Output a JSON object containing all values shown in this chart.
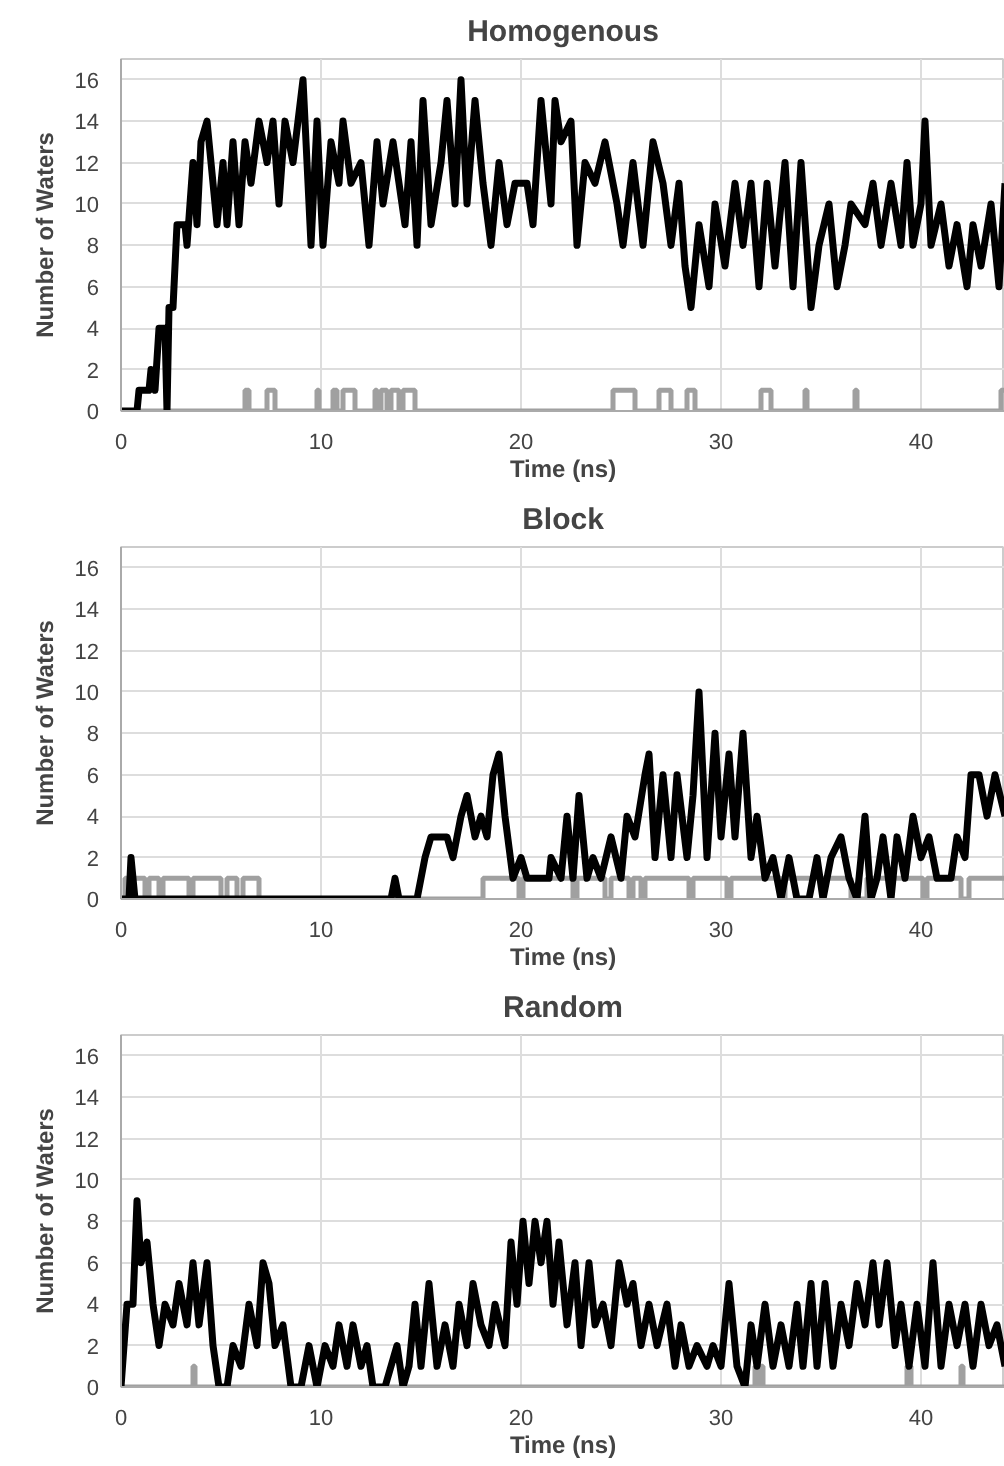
{
  "chart_data": [
    {
      "type": "line",
      "title": "Homogenous",
      "xlabel": "Time (ns)",
      "ylabel": "Number of Waters",
      "xlim": [
        0,
        44.2
      ],
      "ylim": [
        0,
        17
      ],
      "xticks": [
        0,
        10,
        20,
        30,
        40
      ],
      "yticks": [
        0,
        2,
        4,
        6,
        8,
        10,
        12,
        14,
        16
      ],
      "grid": true,
      "line_style": "solid",
      "series": [
        {
          "type": "step",
          "color": "#a0a0a0",
          "x": [
            0,
            6.2,
            6.4,
            7.3,
            7.7,
            9.8,
            9.9,
            10.6,
            10.8,
            11.1,
            11.7,
            12.7,
            12.8,
            13.0,
            13.3,
            13.5,
            13.9,
            14.1,
            14.7,
            24.6,
            25.7,
            26.9,
            27.5,
            28.3,
            28.7,
            32.0,
            32.5,
            34.2,
            34.3,
            36.7,
            36.8,
            44.0,
            44.2
          ],
          "values": [
            0,
            1,
            0,
            1,
            0,
            1,
            0,
            1,
            0,
            1,
            0,
            1,
            0,
            1,
            0,
            1,
            0,
            1,
            0,
            1,
            0,
            1,
            0,
            1,
            0,
            1,
            0,
            1,
            0,
            1,
            0,
            1,
            1
          ]
        },
        {
          "color": "#000000",
          "x": [
            0,
            0.8,
            0.9,
            1.4,
            1.5,
            1.7,
            1.9,
            2.2,
            2.3,
            2.4,
            2.6,
            2.8,
            3.2,
            3.3,
            3.6,
            3.8,
            4.0,
            4.3,
            4.5,
            4.8,
            5.1,
            5.3,
            5.6,
            5.9,
            6.2,
            6.5,
            6.9,
            7.3,
            7.6,
            7.9,
            8.2,
            8.6,
            9.1,
            9.5,
            9.8,
            10.1,
            10.5,
            10.9,
            11.1,
            11.5,
            12.0,
            12.4,
            12.8,
            13.1,
            13.6,
            14.2,
            14.5,
            14.8,
            15.1,
            15.5,
            16.0,
            16.3,
            16.7,
            17.0,
            17.3,
            17.7,
            18.1,
            18.5,
            18.9,
            19.3,
            19.7,
            20.3,
            20.6,
            21.0,
            21.5,
            21.7,
            22.0,
            22.5,
            22.8,
            23.2,
            23.7,
            24.2,
            24.8,
            25.1,
            25.6,
            26.1,
            26.6,
            27.1,
            27.5,
            27.9,
            28.2,
            28.5,
            28.9,
            29.4,
            29.7,
            30.2,
            30.7,
            31.1,
            31.5,
            31.9,
            32.3,
            32.7,
            33.2,
            33.6,
            34.0,
            34.5,
            34.9,
            35.4,
            35.8,
            36.2,
            36.5,
            37.2,
            37.6,
            38.0,
            38.5,
            39.0,
            39.3,
            39.6,
            40.0,
            40.2,
            40.5,
            41.0,
            41.4,
            41.8,
            42.3,
            42.6,
            43.0,
            43.5,
            43.9,
            44.2
          ],
          "values": [
            0,
            0,
            1,
            1,
            2,
            1,
            4,
            4,
            0,
            5,
            5,
            9,
            9,
            8,
            12,
            9,
            13,
            14,
            12,
            9,
            12,
            9,
            13,
            9,
            13,
            11,
            14,
            12,
            14,
            10,
            14,
            12,
            16,
            8,
            14,
            8,
            13,
            11,
            14,
            11,
            12,
            8,
            13,
            10,
            13,
            9,
            13,
            8,
            15,
            9,
            12,
            15,
            10,
            16,
            10,
            15,
            11,
            8,
            12,
            9,
            11,
            11,
            9,
            15,
            10,
            15,
            13,
            14,
            8,
            12,
            11,
            13,
            10,
            8,
            12,
            8,
            13,
            11,
            8,
            11,
            7,
            5,
            9,
            6,
            10,
            7,
            11,
            8,
            11,
            6,
            11,
            7,
            12,
            6,
            12,
            5,
            8,
            10,
            6,
            8,
            10,
            9,
            11,
            8,
            11,
            8,
            12,
            8,
            10,
            14,
            8,
            10,
            7,
            9,
            6,
            9,
            7,
            10,
            6,
            11
          ]
        }
      ]
    },
    {
      "type": "line",
      "title": "Block",
      "xlabel": "Time (ns)",
      "ylabel": "Number of Waters",
      "xlim": [
        0,
        44.2
      ],
      "ylim": [
        0,
        17
      ],
      "xticks": [
        0,
        10,
        20,
        30,
        40
      ],
      "yticks": [
        0,
        2,
        4,
        6,
        8,
        10,
        12,
        14,
        16
      ],
      "grid": true,
      "line_style": "solid",
      "series": [
        {
          "type": "step",
          "color": "#a0a0a0",
          "x": [
            0,
            0.2,
            1.2,
            1.4,
            1.9,
            2.1,
            3.4,
            3.6,
            5.0,
            5.3,
            5.8,
            6.1,
            6.9,
            18.1,
            19.9,
            20.1,
            22.6,
            22.8,
            24.2,
            24.5,
            25.4,
            25.6,
            26.0,
            26.2,
            28.4,
            28.6,
            30.3,
            30.5,
            33.0,
            33.2,
            36.5,
            37.3,
            40.1,
            40.3,
            42.0,
            42.4,
            44.2
          ],
          "values": [
            0,
            1,
            0,
            1,
            0,
            1,
            0,
            1,
            0,
            1,
            0,
            1,
            0,
            1,
            0,
            1,
            0,
            1,
            0,
            1,
            0,
            1,
            0,
            1,
            0,
            1,
            0,
            1,
            0,
            1,
            0,
            1,
            0,
            1,
            0,
            1,
            1
          ]
        },
        {
          "color": "#000000",
          "x": [
            0,
            0.4,
            0.5,
            0.7,
            1.5,
            13.5,
            13.7,
            13.9,
            14.8,
            15.2,
            15.5,
            16.3,
            16.6,
            17.0,
            17.3,
            17.7,
            18.0,
            18.3,
            18.6,
            18.9,
            19.2,
            19.6,
            20.0,
            20.3,
            21.4,
            21.5,
            22.0,
            22.3,
            22.6,
            22.9,
            23.3,
            23.6,
            24.0,
            24.5,
            25.0,
            25.3,
            25.7,
            26.2,
            26.4,
            26.7,
            27.1,
            27.5,
            27.8,
            28.3,
            28.6,
            28.9,
            29.3,
            29.7,
            30.0,
            30.4,
            30.7,
            31.1,
            31.5,
            31.8,
            32.2,
            32.6,
            33.0,
            33.4,
            33.8,
            34.4,
            34.8,
            35.1,
            35.5,
            36.0,
            36.4,
            36.8,
            37.2,
            37.5,
            37.8,
            38.1,
            38.5,
            38.8,
            39.2,
            39.6,
            40.0,
            40.4,
            40.8,
            41.5,
            41.8,
            42.2,
            42.5,
            42.9,
            43.3,
            43.7,
            44.2
          ],
          "values": [
            0,
            0,
            2,
            0,
            0,
            0,
            1,
            0,
            0,
            2,
            3,
            3,
            2,
            4,
            5,
            3,
            4,
            3,
            6,
            7,
            4,
            1,
            2,
            1,
            1,
            2,
            1,
            4,
            1,
            5,
            1,
            2,
            1,
            3,
            1,
            4,
            3,
            6,
            7,
            2,
            6,
            2,
            6,
            2,
            5,
            10,
            2,
            8,
            3,
            7,
            3,
            8,
            2,
            4,
            1,
            2,
            0,
            2,
            0,
            0,
            2,
            0,
            2,
            3,
            1,
            0,
            4,
            0,
            1,
            3,
            0,
            3,
            1,
            4,
            2,
            3,
            1,
            1,
            3,
            2,
            6,
            6,
            4,
            6,
            4
          ]
        }
      ]
    },
    {
      "type": "line",
      "title": "Random",
      "xlabel": "Time (ns)",
      "ylabel": "Number of Waters",
      "xlim": [
        0,
        44.2
      ],
      "ylim": [
        0,
        17
      ],
      "xticks": [
        0,
        10,
        20,
        30,
        40
      ],
      "yticks": [
        0,
        2,
        4,
        6,
        8,
        10,
        12,
        14,
        16
      ],
      "grid": true,
      "line_style": "solid",
      "series": [
        {
          "type": "step",
          "color": "#a0a0a0",
          "x": [
            0,
            3.6,
            3.7,
            31.7,
            31.8,
            32.0,
            32.1,
            39.3,
            39.5,
            42.0,
            42.1,
            44.2
          ],
          "values": [
            0,
            1,
            0,
            1,
            0,
            1,
            0,
            1,
            0,
            1,
            0,
            0
          ]
        },
        {
          "color": "#000000",
          "x": [
            0,
            0.3,
            0.6,
            0.8,
            1.0,
            1.3,
            1.6,
            1.9,
            2.2,
            2.6,
            2.9,
            3.3,
            3.6,
            3.9,
            4.3,
            4.6,
            4.9,
            5.3,
            5.6,
            6.0,
            6.4,
            6.8,
            7.1,
            7.4,
            7.7,
            8.1,
            8.5,
            9.0,
            9.4,
            9.8,
            10.2,
            10.6,
            10.9,
            11.3,
            11.6,
            12.0,
            12.3,
            12.6,
            13.2,
            13.5,
            13.8,
            14.1,
            14.4,
            14.7,
            15.0,
            15.4,
            15.8,
            16.2,
            16.6,
            16.9,
            17.3,
            17.6,
            18.0,
            18.4,
            18.7,
            19.2,
            19.5,
            19.8,
            20.1,
            20.4,
            20.7,
            21.0,
            21.3,
            21.6,
            21.9,
            22.3,
            22.7,
            23.0,
            23.4,
            23.7,
            24.1,
            24.5,
            24.9,
            25.3,
            25.6,
            26.0,
            26.4,
            26.8,
            27.3,
            27.7,
            28.0,
            28.4,
            28.8,
            29.3,
            29.6,
            30.0,
            30.4,
            30.8,
            31.2,
            31.5,
            31.8,
            32.2,
            32.6,
            33.0,
            33.4,
            33.8,
            34.1,
            34.5,
            34.8,
            35.2,
            35.6,
            36.0,
            36.4,
            36.8,
            37.2,
            37.6,
            37.9,
            38.3,
            38.7,
            39.0,
            39.4,
            39.8,
            40.2,
            40.6,
            41.0,
            41.4,
            41.8,
            42.2,
            42.6,
            43.0,
            43.4,
            43.8,
            44.2
          ],
          "values": [
            0,
            4,
            4,
            9,
            6,
            7,
            4,
            2,
            4,
            3,
            5,
            3,
            6,
            3,
            6,
            2,
            0,
            0,
            2,
            1,
            4,
            2,
            6,
            5,
            2,
            3,
            0,
            0,
            2,
            0,
            2,
            1,
            3,
            1,
            3,
            1,
            2,
            0,
            0,
            1,
            2,
            0,
            1,
            4,
            1,
            5,
            1,
            3,
            1,
            4,
            2,
            5,
            3,
            2,
            4,
            2,
            7,
            4,
            8,
            5,
            8,
            6,
            8,
            4,
            7,
            3,
            6,
            2,
            6,
            3,
            4,
            2,
            6,
            4,
            5,
            2,
            4,
            2,
            4,
            1,
            3,
            1,
            2,
            1,
            2,
            1,
            5,
            1,
            0,
            3,
            1,
            4,
            1,
            3,
            1,
            4,
            1,
            5,
            1,
            5,
            1,
            4,
            2,
            5,
            3,
            6,
            3,
            6,
            2,
            4,
            1,
            4,
            1,
            6,
            1,
            4,
            2,
            4,
            1,
            4,
            2,
            3,
            1
          ]
        }
      ]
    }
  ]
}
